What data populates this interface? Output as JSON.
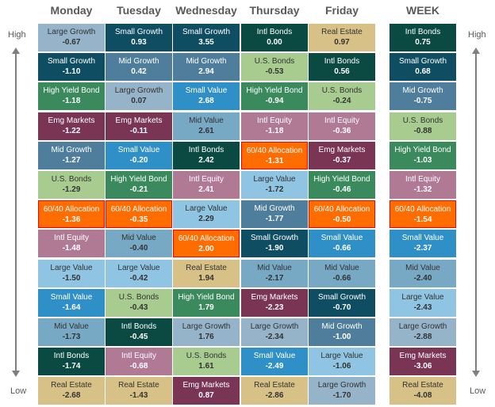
{
  "chart_data": {
    "type": "table",
    "columns": [
      "Monday",
      "Tuesday",
      "Wednesday",
      "Thursday",
      "Friday",
      "WEEK"
    ],
    "high_label": "High",
    "low_label": "Low",
    "cells": [
      [
        {
          "name": "Large Growth",
          "value": "-0.67"
        },
        {
          "name": "Small Growth",
          "value": "-1.10"
        },
        {
          "name": "High Yield Bond",
          "value": "-1.18"
        },
        {
          "name": "Emg Markets",
          "value": "-1.22"
        },
        {
          "name": "Mid Growth",
          "value": "-1.27"
        },
        {
          "name": "U.S. Bonds",
          "value": "-1.29"
        },
        {
          "name": "60/40 Allocation",
          "value": "-1.36"
        },
        {
          "name": "Intl Equity",
          "value": "-1.48"
        },
        {
          "name": "Large Value",
          "value": "-1.50"
        },
        {
          "name": "Small Value",
          "value": "-1.64"
        },
        {
          "name": "Mid Value",
          "value": "-1.73"
        },
        {
          "name": "Intl Bonds",
          "value": "-1.74"
        },
        {
          "name": "Real Estate",
          "value": "-2.68"
        }
      ],
      [
        {
          "name": "Small Growth",
          "value": "0.93"
        },
        {
          "name": "Mid Growth",
          "value": "0.42"
        },
        {
          "name": "Large Growth",
          "value": "0.07"
        },
        {
          "name": "Emg Markets",
          "value": "-0.11"
        },
        {
          "name": "Small Value",
          "value": "-0.20"
        },
        {
          "name": "High Yield Bond",
          "value": "-0.21"
        },
        {
          "name": "60/40 Allocation",
          "value": "-0.35"
        },
        {
          "name": "Mid Value",
          "value": "-0.40"
        },
        {
          "name": "Large Value",
          "value": "-0.42"
        },
        {
          "name": "U.S. Bonds",
          "value": "-0.43"
        },
        {
          "name": "Intl Bonds",
          "value": "-0.45"
        },
        {
          "name": "Intl Equity",
          "value": "-0.68"
        },
        {
          "name": "Real Estate",
          "value": "-1.43"
        }
      ],
      [
        {
          "name": "Small Growth",
          "value": "3.55"
        },
        {
          "name": "Mid Growth",
          "value": "2.94"
        },
        {
          "name": "Small Value",
          "value": "2.68"
        },
        {
          "name": "Mid Value",
          "value": "2.61"
        },
        {
          "name": "Intl Bonds",
          "value": "2.42"
        },
        {
          "name": "Intl Equity",
          "value": "2.41"
        },
        {
          "name": "Large Value",
          "value": "2.29"
        },
        {
          "name": "60/40 Allocation",
          "value": "2.00"
        },
        {
          "name": "Real Estate",
          "value": "1.94"
        },
        {
          "name": "High Yield Bond",
          "value": "1.79"
        },
        {
          "name": "Large Growth",
          "value": "1.76"
        },
        {
          "name": "U.S. Bonds",
          "value": "1.61"
        },
        {
          "name": "Emg Markets",
          "value": "0.87"
        }
      ],
      [
        {
          "name": "Intl Bonds",
          "value": "0.00"
        },
        {
          "name": "U.S. Bonds",
          "value": "-0.53"
        },
        {
          "name": "High Yield Bond",
          "value": "-0.94"
        },
        {
          "name": "Intl Equity",
          "value": "-1.18"
        },
        {
          "name": "60/40 Allocation",
          "value": "-1.31"
        },
        {
          "name": "Large Value",
          "value": "-1.72"
        },
        {
          "name": "Mid Growth",
          "value": "-1.77"
        },
        {
          "name": "Small Growth",
          "value": "-1.90"
        },
        {
          "name": "Mid Value",
          "value": "-2.17"
        },
        {
          "name": "Emg Markets",
          "value": "-2.23"
        },
        {
          "name": "Large Growth",
          "value": "-2.34"
        },
        {
          "name": "Small Value",
          "value": "-2.49"
        },
        {
          "name": "Real Estate",
          "value": "-2.86"
        }
      ],
      [
        {
          "name": "Real Estate",
          "value": "0.97"
        },
        {
          "name": "Intl Bonds",
          "value": "0.56"
        },
        {
          "name": "U.S. Bonds",
          "value": "-0.24"
        },
        {
          "name": "Intl Equity",
          "value": "-0.36"
        },
        {
          "name": "Emg Markets",
          "value": "-0.37"
        },
        {
          "name": "High Yield Bond",
          "value": "-0.46"
        },
        {
          "name": "60/40 Allocation",
          "value": "-0.50"
        },
        {
          "name": "Small Value",
          "value": "-0.66"
        },
        {
          "name": "Mid Value",
          "value": "-0.66"
        },
        {
          "name": "Small Growth",
          "value": "-0.70"
        },
        {
          "name": "Mid Growth",
          "value": "-1.00"
        },
        {
          "name": "Large Value",
          "value": "-1.06"
        },
        {
          "name": "Large Growth",
          "value": "-1.70"
        }
      ],
      [
        {
          "name": "Intl Bonds",
          "value": "0.75"
        },
        {
          "name": "Small Growth",
          "value": "0.68"
        },
        {
          "name": "Mid Growth",
          "value": "-0.75"
        },
        {
          "name": "U.S. Bonds",
          "value": "-0.88"
        },
        {
          "name": "High Yield Bond",
          "value": "-1.03"
        },
        {
          "name": "Intl Equity",
          "value": "-1.32"
        },
        {
          "name": "60/40 Allocation",
          "value": "-1.54"
        },
        {
          "name": "Small Value",
          "value": "-2.37"
        },
        {
          "name": "Mid Value",
          "value": "-2.40"
        },
        {
          "name": "Large Value",
          "value": "-2.43"
        },
        {
          "name": "Large Growth",
          "value": "-2.88"
        },
        {
          "name": "Emg Markets",
          "value": "-3.06"
        },
        {
          "name": "Real Estate",
          "value": "-4.08"
        }
      ]
    ],
    "asset_colors": {
      "Large Growth": "#95b3c9",
      "Small Growth": "#0e4d62",
      "Mid Growth": "#4f7e9c",
      "Large Value": "#8fc5e3",
      "Small Value": "#2f8fc7",
      "Mid Value": "#77a8c4",
      "Intl Bonds": "#0a4a43",
      "U.S. Bonds": "#a8cc8f",
      "High Yield Bond": "#3a8a5e",
      "Intl Equity": "#b07a95",
      "Emg Markets": "#7a3555",
      "Real Estate": "#d7c187",
      "60/40 Allocation": "#ff6c00"
    }
  }
}
